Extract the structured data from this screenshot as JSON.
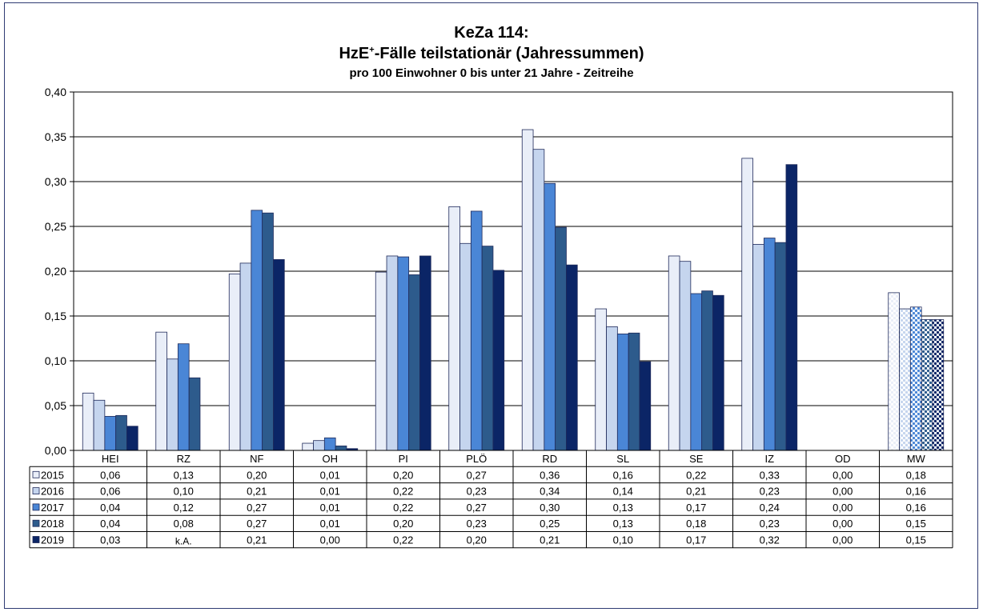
{
  "chart_data": {
    "type": "bar",
    "title": "KeZa 114:",
    "subtitle_main": "HzE",
    "subtitle_sup": "+",
    "subtitle_rest": "-Fälle teilstationär (Jahressummen)",
    "subtitle2": "pro 100 Einwohner 0 bis unter 21 Jahre - Zeitreihe",
    "ylim": [
      0,
      0.4
    ],
    "yticks": [
      "0,00",
      "0,05",
      "0,10",
      "0,15",
      "0,20",
      "0,25",
      "0,30",
      "0,35",
      "0,40"
    ],
    "grid": true,
    "legend": "table-left",
    "categories": [
      "HEI",
      "RZ",
      "NF",
      "OH",
      "PI",
      "PLÖ",
      "RD",
      "SL",
      "SE",
      "IZ",
      "OD",
      "MW"
    ],
    "series": [
      {
        "name": "2015",
        "color": "#e9eef8",
        "values": [
          0.064,
          0.132,
          0.197,
          0.008,
          0.199,
          0.272,
          0.358,
          0.158,
          0.217,
          0.326,
          0.0,
          0.176
        ],
        "labels": [
          "0,06",
          "0,13",
          "0,20",
          "0,01",
          "0,20",
          "0,27",
          "0,36",
          "0,16",
          "0,22",
          "0,33",
          "0,00",
          "0,18"
        ]
      },
      {
        "name": "2016",
        "color": "#c5d5ee",
        "values": [
          0.056,
          0.102,
          0.209,
          0.011,
          0.217,
          0.231,
          0.336,
          0.138,
          0.211,
          0.23,
          0.0,
          0.158
        ],
        "labels": [
          "0,06",
          "0,10",
          "0,21",
          "0,01",
          "0,22",
          "0,23",
          "0,34",
          "0,14",
          "0,21",
          "0,23",
          "0,00",
          "0,16"
        ]
      },
      {
        "name": "2017",
        "color": "#4a86d6",
        "values": [
          0.038,
          0.119,
          0.268,
          0.014,
          0.216,
          0.267,
          0.298,
          0.13,
          0.175,
          0.237,
          0.0,
          0.16
        ],
        "labels": [
          "0,04",
          "0,12",
          "0,27",
          "0,01",
          "0,22",
          "0,27",
          "0,30",
          "0,13",
          "0,17",
          "0,24",
          "0,00",
          "0,16"
        ]
      },
      {
        "name": "2018",
        "color": "#2d5b8c",
        "values": [
          0.039,
          0.081,
          0.265,
          0.005,
          0.196,
          0.228,
          0.249,
          0.131,
          0.178,
          0.232,
          0.0,
          0.146
        ],
        "labels": [
          "0,04",
          "0,08",
          "0,27",
          "0,01",
          "0,20",
          "0,23",
          "0,25",
          "0,13",
          "0,18",
          "0,23",
          "0,00",
          "0,15"
        ]
      },
      {
        "name": "2019",
        "color": "#0b2566",
        "values": [
          0.027,
          null,
          0.213,
          0.002,
          0.217,
          0.201,
          0.207,
          0.099,
          0.173,
          0.319,
          0.0,
          0.146
        ],
        "labels": [
          "0,03",
          "k.A.",
          "0,21",
          "0,00",
          "0,22",
          "0,20",
          "0,21",
          "0,10",
          "0,17",
          "0,32",
          "0,00",
          "0,15"
        ]
      }
    ],
    "patterned_category": "MW"
  },
  "colors": {
    "frame": "#2f3b73",
    "grid": "#000000",
    "bar_stroke": "#1f2a5a"
  }
}
